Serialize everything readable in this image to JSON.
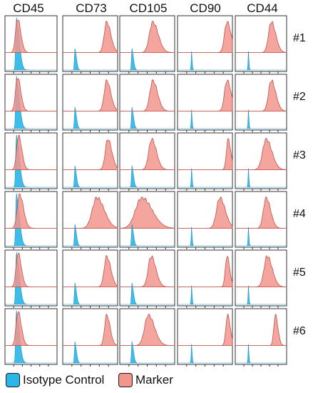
{
  "chart_data": {
    "type": "area",
    "panel_kind": "flow-cytometry-histogram-grid",
    "columns": [
      "CD45",
      "CD73",
      "CD105",
      "CD90",
      "CD44"
    ],
    "rows": [
      "#1",
      "#2",
      "#3",
      "#4",
      "#5",
      "#6"
    ],
    "x_scale": "log",
    "grid": false,
    "legend": {
      "position": "bottom-left",
      "entries": [
        {
          "label": "Isotype Control",
          "color": "#29b6e8"
        },
        {
          "label": "Marker",
          "color": "#f2958d"
        }
      ]
    },
    "series_colors": {
      "isotype": "#29b6e8",
      "marker": "#f2958d"
    },
    "isotype_peak": [
      0.22,
      0.22,
      0.22,
      0.25,
      0.25
    ],
    "marker_peaks": [
      [
        0.24,
        0.8,
        0.6,
        0.9,
        0.7
      ],
      [
        0.24,
        0.8,
        0.6,
        0.9,
        0.7
      ],
      [
        0.26,
        0.82,
        0.58,
        0.92,
        0.6
      ],
      [
        0.28,
        0.62,
        0.4,
        0.77,
        0.6
      ],
      [
        0.25,
        0.8,
        0.57,
        0.9,
        0.62
      ],
      [
        0.25,
        0.8,
        0.52,
        0.91,
        0.78
      ]
    ],
    "marker_widths": [
      [
        0.05,
        0.06,
        0.08,
        0.06,
        0.07
      ],
      [
        0.05,
        0.06,
        0.07,
        0.06,
        0.07
      ],
      [
        0.05,
        0.06,
        0.07,
        0.04,
        0.09
      ],
      [
        0.06,
        0.11,
        0.15,
        0.08,
        0.07
      ],
      [
        0.05,
        0.06,
        0.07,
        0.04,
        0.08
      ],
      [
        0.05,
        0.05,
        0.09,
        0.04,
        0.04
      ]
    ]
  }
}
